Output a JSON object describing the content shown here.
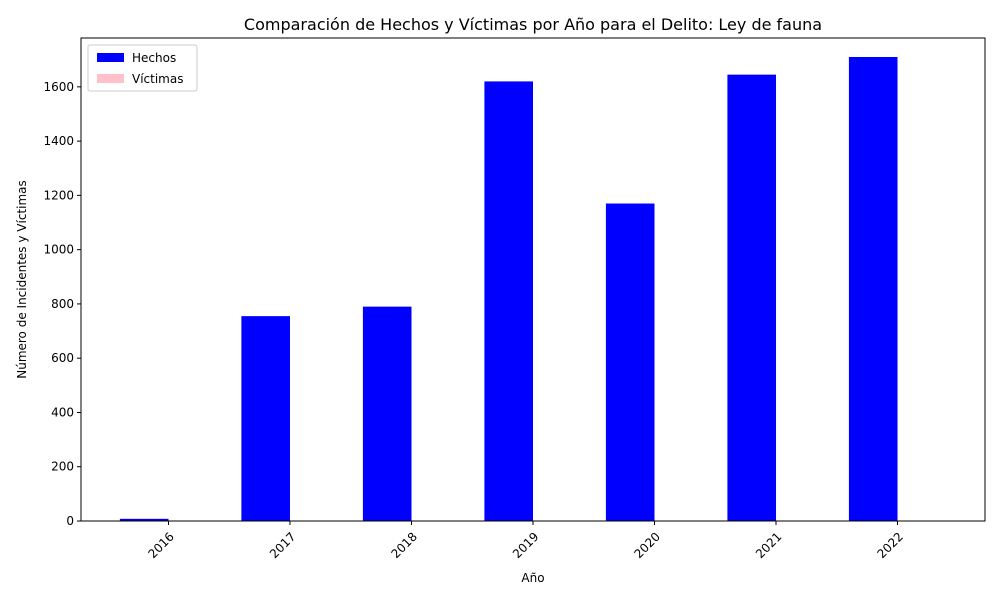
{
  "chart_data": {
    "type": "bar",
    "title": "Comparación de Hechos y Víctimas por Año para el Delito: Ley de fauna",
    "xlabel": "Año",
    "ylabel": "Número de Incidentes y Víctimas",
    "categories": [
      "2016",
      "2017",
      "2018",
      "2019",
      "2020",
      "2021",
      "2022"
    ],
    "series": [
      {
        "name": "Hechos",
        "color": "#0000ff",
        "values": [
          8,
          755,
          790,
          1620,
          1170,
          1645,
          1710
        ]
      },
      {
        "name": "Víctimas",
        "color": "#ffc0cb",
        "values": [
          0,
          0,
          0,
          0,
          0,
          0,
          0
        ]
      }
    ],
    "ylim": [
      0,
      1780
    ],
    "yticks": [
      0,
      200,
      400,
      600,
      800,
      1000,
      1200,
      1400,
      1600
    ],
    "grid": false,
    "legend_position": "upper-left"
  }
}
